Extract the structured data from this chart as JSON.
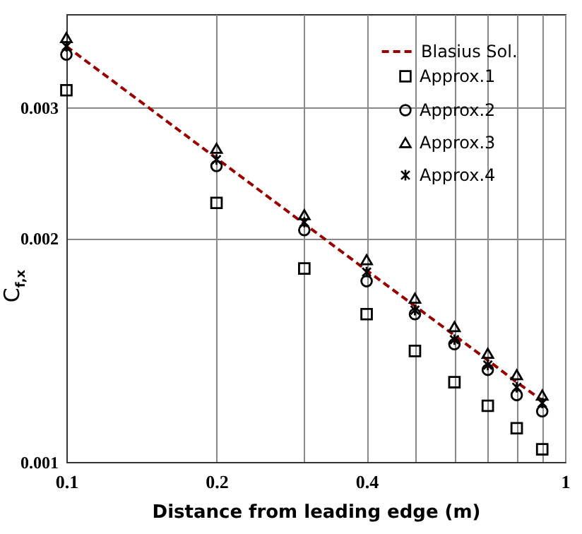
{
  "chart_data": {
    "type": "scatter",
    "xlabel": "Distance from leading edge (m)",
    "ylabel": "C$_{f,x}$",
    "x": [
      0.1,
      0.2,
      0.3,
      0.4,
      0.5,
      0.6,
      0.7,
      0.8,
      0.9
    ],
    "series": [
      {
        "name": "Blasius Sol.",
        "type": "line",
        "color": "#990000",
        "line_style": "dashed",
        "marker": "none",
        "values": [
          0.00362,
          0.00256,
          0.00209,
          0.00181,
          0.00162,
          0.00148,
          0.00137,
          0.00128,
          0.00121
        ]
      },
      {
        "name": "Approx.1",
        "color": "#000000",
        "marker": "square",
        "values": [
          0.00316,
          0.00223,
          0.00182,
          0.00158,
          0.00141,
          0.00128,
          0.00119,
          0.00111,
          0.00104
        ]
      },
      {
        "name": "Approx.2",
        "color": "#000000",
        "marker": "circle",
        "values": [
          0.00353,
          0.0025,
          0.00205,
          0.00175,
          0.00158,
          0.00144,
          0.00133,
          0.00123,
          0.00117
        ]
      },
      {
        "name": "Approx.3",
        "color": "#000000",
        "marker": "triangle",
        "values": [
          0.00372,
          0.00264,
          0.00215,
          0.00187,
          0.00166,
          0.00152,
          0.0014,
          0.00131,
          0.00123
        ]
      },
      {
        "name": "Approx.4",
        "color": "#000000",
        "marker": "cross",
        "values": [
          0.00362,
          0.00255,
          0.0021,
          0.0018,
          0.0016,
          0.00146,
          0.00135,
          0.00126,
          0.0012
        ]
      }
    ],
    "log": "xy",
    "xlim": [
      0.1,
      1
    ],
    "ylim": [
      0.001,
      0.004
    ],
    "xticks": [
      0.1,
      0.2,
      {
        "value": 0.3,
        "label": null
      },
      0.4,
      {
        "value": 0.5,
        "label": null
      },
      {
        "value": 0.6,
        "label": null
      },
      {
        "value": 0.7,
        "label": null
      },
      {
        "value": 0.8,
        "label": null
      },
      {
        "value": 0.9,
        "label": null
      },
      1
    ],
    "yticks": [
      0.001,
      0.002,
      0.003
    ],
    "grid": true,
    "legend": "top right"
  }
}
